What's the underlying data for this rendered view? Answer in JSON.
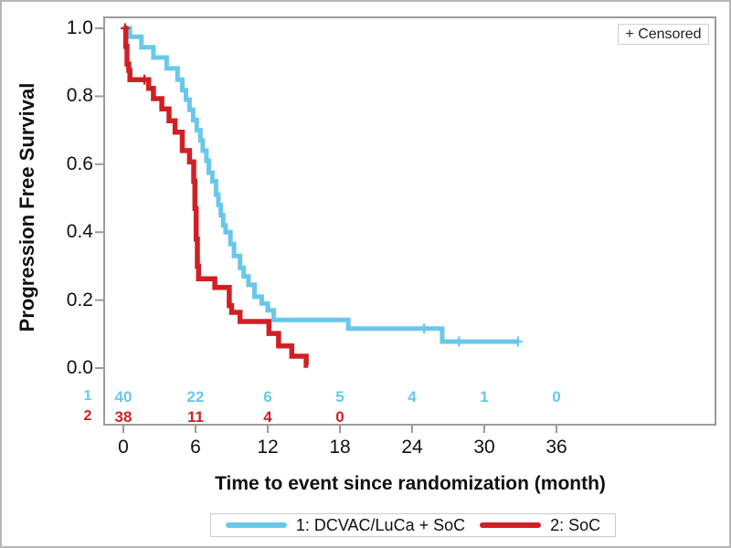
{
  "censored_box": {
    "label": "+ Censored"
  },
  "y_axis": {
    "title": "Progression Free Survival",
    "ticks": [
      "1.0",
      "0.8",
      "0.6",
      "0.4",
      "0.2",
      "0.0"
    ],
    "values": [
      1.0,
      0.8,
      0.6,
      0.4,
      0.2,
      0.0
    ]
  },
  "x_axis": {
    "title": "Time to event since randomization (month)",
    "ticks": [
      "0",
      "6",
      "12",
      "18",
      "24",
      "30",
      "36"
    ],
    "values": [
      0,
      6,
      12,
      18,
      24,
      30,
      36
    ]
  },
  "colors": {
    "dcvac": "#69C8EA",
    "soc": "#D02025",
    "frame": "#9B9B9B",
    "text": "#111111"
  },
  "legend": {
    "items": [
      {
        "label": "1: DCVAC/LuCa + SoC",
        "series": "dcvac"
      },
      {
        "label": "2: SoC",
        "series": "soc"
      }
    ]
  },
  "chart_data": {
    "type": "line",
    "subtype": "kaplan-meier-step",
    "title": "",
    "xlabel": "Time to event since randomization (month)",
    "ylabel": "Progression Free Survival",
    "xlim": [
      0,
      36
    ],
    "ylim": [
      0.0,
      1.0
    ],
    "grid": false,
    "legend_position": "bottom",
    "censored_marker": "+",
    "series": [
      {
        "name": "1: DCVAC/LuCa + SoC",
        "color_key": "dcvac",
        "steps": [
          [
            0,
            1.0
          ],
          [
            0.55,
            0.975
          ],
          [
            1.5,
            0.944
          ],
          [
            2.5,
            0.914
          ],
          [
            3.6,
            0.882
          ],
          [
            4.5,
            0.849
          ],
          [
            4.9,
            0.818
          ],
          [
            5.2,
            0.79
          ],
          [
            5.5,
            0.76
          ],
          [
            5.8,
            0.73
          ],
          [
            6.1,
            0.7
          ],
          [
            6.4,
            0.67
          ],
          [
            6.6,
            0.64
          ],
          [
            6.9,
            0.61
          ],
          [
            7.1,
            0.575
          ],
          [
            7.4,
            0.55
          ],
          [
            7.7,
            0.51
          ],
          [
            7.9,
            0.48
          ],
          [
            8.1,
            0.45
          ],
          [
            8.3,
            0.42
          ],
          [
            8.5,
            0.4
          ],
          [
            8.9,
            0.365
          ],
          [
            9.2,
            0.33
          ],
          [
            9.7,
            0.295
          ],
          [
            10.0,
            0.27
          ],
          [
            10.4,
            0.245
          ],
          [
            10.9,
            0.21
          ],
          [
            11.5,
            0.19
          ],
          [
            12.0,
            0.17
          ],
          [
            12.5,
            0.142
          ],
          [
            18.7,
            0.116
          ],
          [
            26.5,
            0.078
          ]
        ],
        "end_t": 32.8,
        "censored": [
          [
            25.0,
            0.116
          ],
          [
            27.9,
            0.078
          ],
          [
            32.8,
            0.078
          ]
        ]
      },
      {
        "name": "2: SoC",
        "color_key": "soc",
        "steps": [
          [
            0,
            1.0
          ],
          [
            0.2,
            0.947
          ],
          [
            0.3,
            0.895
          ],
          [
            0.45,
            0.876
          ],
          [
            0.55,
            0.849
          ],
          [
            2.1,
            0.823
          ],
          [
            2.5,
            0.793
          ],
          [
            3.2,
            0.763
          ],
          [
            3.8,
            0.728
          ],
          [
            4.3,
            0.694
          ],
          [
            4.9,
            0.64
          ],
          [
            5.5,
            0.607
          ],
          [
            5.85,
            0.55
          ],
          [
            5.95,
            0.47
          ],
          [
            6.05,
            0.38
          ],
          [
            6.15,
            0.3
          ],
          [
            6.25,
            0.263
          ],
          [
            7.6,
            0.237
          ],
          [
            8.8,
            0.184
          ],
          [
            9.0,
            0.164
          ],
          [
            9.7,
            0.137
          ],
          [
            12.1,
            0.102
          ],
          [
            12.9,
            0.065
          ],
          [
            14.0,
            0.035
          ],
          [
            15.2,
            0.008
          ]
        ],
        "end_t": 15.35,
        "censored": [
          [
            0.15,
            1.0
          ],
          [
            1.75,
            0.849
          ]
        ]
      }
    ],
    "number_at_risk": {
      "rows": [
        {
          "label": "1",
          "series": "dcvac",
          "times": [
            0,
            6,
            12,
            18,
            24,
            30,
            36
          ],
          "counts": [
            "40",
            "22",
            "6",
            "5",
            "4",
            "1",
            "0"
          ]
        },
        {
          "label": "2",
          "series": "soc",
          "times": [
            0,
            6,
            12,
            18
          ],
          "counts": [
            "38",
            "11",
            "4",
            "0"
          ]
        }
      ]
    }
  }
}
